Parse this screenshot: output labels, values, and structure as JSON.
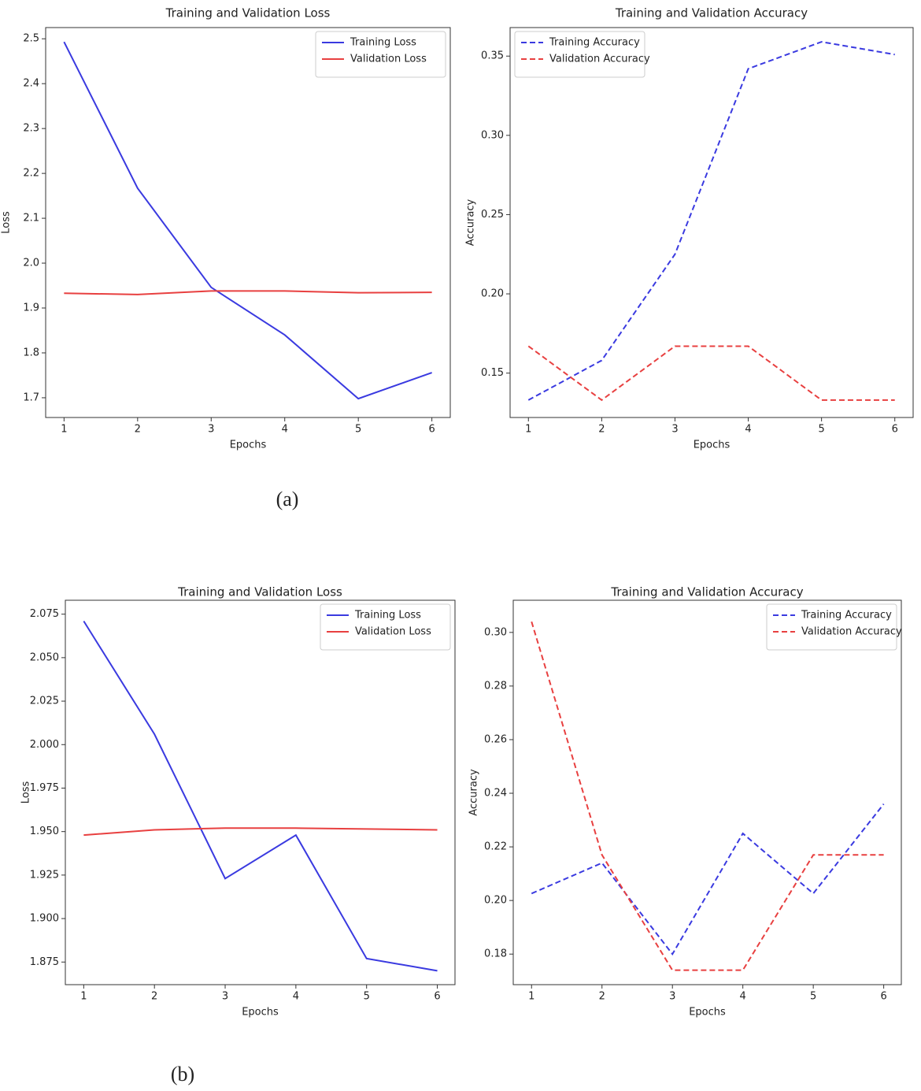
{
  "chart_data": [
    {
      "type": "line",
      "title": "Training and Validation Loss",
      "xlabel": "Epochs",
      "ylabel": "Loss",
      "x": [
        1,
        2,
        3,
        4,
        5,
        6
      ],
      "series": [
        {
          "name": "Training Loss",
          "color": "#3a3ae0",
          "linestyle": "solid",
          "values": [
            2.493,
            2.167,
            1.946,
            1.84,
            1.698,
            1.756
          ]
        },
        {
          "name": "Validation Loss",
          "color": "#e84040",
          "linestyle": "solid",
          "values": [
            1.933,
            1.93,
            1.938,
            1.938,
            1.934,
            1.935
          ]
        }
      ],
      "xlim": [
        0.75,
        6.25
      ],
      "xticks": [
        1,
        2,
        3,
        4,
        5,
        6
      ],
      "ylim": [
        1.656,
        2.525
      ],
      "yticks": [
        1.7,
        1.8,
        1.9,
        {
          "value": 2,
          "label": "2.0"
        },
        2.1,
        2.2,
        2.3,
        2.4,
        2.5
      ],
      "legend": "upper right"
    },
    {
      "type": "line",
      "title": "Training and Validation Accuracy",
      "xlabel": "Epochs",
      "ylabel": "Accuracy",
      "x": [
        1,
        2,
        3,
        4,
        5,
        6
      ],
      "series": [
        {
          "name": "Training Accuracy",
          "color": "#3a3ae0",
          "linestyle": "dashed",
          "values": [
            0.133,
            0.158,
            0.225,
            0.342,
            0.359,
            0.351
          ]
        },
        {
          "name": "Validation Accuracy",
          "color": "#e84040",
          "linestyle": "dashed",
          "values": [
            0.167,
            0.133,
            0.167,
            0.167,
            0.133,
            0.133
          ]
        }
      ],
      "xlim": [
        0.75,
        6.25
      ],
      "xticks": [
        1,
        2,
        3,
        4,
        5,
        6
      ],
      "ylim": [
        0.122,
        0.368
      ],
      "yticks": [
        0.15,
        {
          "value": 0.2,
          "label": "0.20"
        },
        0.25,
        {
          "value": 0.3,
          "label": "0.30"
        },
        0.35
      ],
      "legend": "upper left"
    },
    {
      "type": "line",
      "title": "Training and Validation Loss",
      "xlabel": "Epochs",
      "ylabel": "Loss",
      "x": [
        1,
        2,
        3,
        4,
        5,
        6
      ],
      "series": [
        {
          "name": "Training Loss",
          "color": "#3a3ae0",
          "linestyle": "solid",
          "values": [
            2.071,
            2.006,
            1.923,
            1.948,
            1.877,
            1.87
          ]
        },
        {
          "name": "Validation Loss",
          "color": "#e84040",
          "linestyle": "solid",
          "values": [
            1.948,
            1.951,
            1.952,
            1.952,
            1.9515,
            1.951
          ]
        }
      ],
      "xlim": [
        0.74,
        6.25
      ],
      "xticks": [
        1,
        2,
        3,
        4,
        5,
        6
      ],
      "ylim": [
        1.862,
        2.083
      ],
      "yticks": [
        1.875,
        {
          "value": 1.9,
          "label": "1.900"
        },
        1.925,
        {
          "value": 1.95,
          "label": "1.950"
        },
        1.975,
        {
          "value": 2,
          "label": "2.000"
        },
        2.025,
        {
          "value": 2.05,
          "label": "2.050"
        },
        2.075
      ],
      "legend": "upper right"
    },
    {
      "type": "line",
      "title": "Training and Validation Accuracy",
      "xlabel": "Epochs",
      "ylabel": "Accuracy",
      "x": [
        1,
        2,
        3,
        4,
        5,
        6
      ],
      "series": [
        {
          "name": "Training Accuracy",
          "color": "#3a3ae0",
          "linestyle": "dashed",
          "values": [
            0.2026,
            0.214,
            0.18,
            0.225,
            0.2026,
            0.236
          ]
        },
        {
          "name": "Validation Accuracy",
          "color": "#e84040",
          "linestyle": "dashed",
          "values": [
            0.304,
            0.217,
            0.174,
            0.174,
            0.217,
            0.217
          ]
        }
      ],
      "xlim": [
        0.74,
        6.25
      ],
      "xticks": [
        1,
        2,
        3,
        4,
        5,
        6
      ],
      "ylim": [
        0.1686,
        0.312
      ],
      "yticks": [
        0.18,
        {
          "value": 0.2,
          "label": "0.20"
        },
        0.22,
        0.24,
        0.26,
        0.28,
        {
          "value": 0.3,
          "label": "0.30"
        }
      ],
      "legend": "upper right"
    }
  ],
  "captions": [
    "(a)",
    "(b)"
  ]
}
